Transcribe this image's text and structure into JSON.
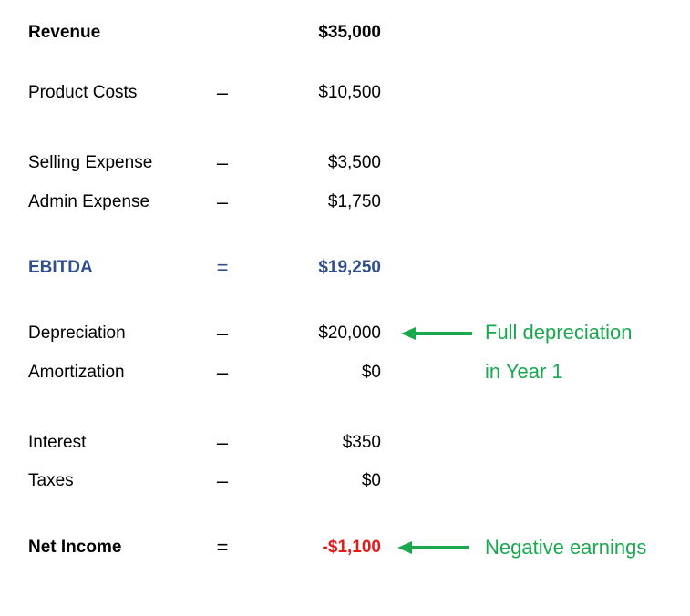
{
  "income_statement": {
    "rows": [
      {
        "label": "Revenue",
        "operator": "",
        "value": "$35,000"
      },
      {
        "label": "Product Costs",
        "operator": "–",
        "value": "$10,500"
      },
      {
        "label": "Selling Expense",
        "operator": "–",
        "value": "$3,500"
      },
      {
        "label": "Admin Expense",
        "operator": "–",
        "value": "$1,750"
      },
      {
        "label": "EBITDA",
        "operator": "=",
        "value": "$19,250"
      },
      {
        "label": "Depreciation",
        "operator": "–",
        "value": "$20,000"
      },
      {
        "label": "Amortization",
        "operator": "–",
        "value": "$0"
      },
      {
        "label": "Interest",
        "operator": "–",
        "value": "$350"
      },
      {
        "label": "Taxes",
        "operator": "–",
        "value": "$0"
      },
      {
        "label": "Net Income",
        "operator": "=",
        "value": "-$1,100"
      }
    ]
  },
  "annotations": {
    "depreciation_note_line1": "Full depreciation",
    "depreciation_note_line2": "in Year 1",
    "net_income_note": "Negative earnings"
  },
  "colors": {
    "ebitda": "#2f4f8f",
    "negative_value": "#e31b1b",
    "annotation": "#1aa84f"
  }
}
